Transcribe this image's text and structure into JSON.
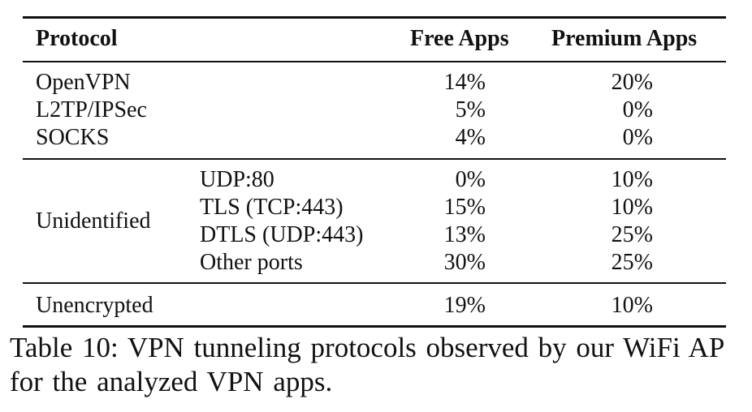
{
  "table": {
    "headers": {
      "protocol": "Protocol",
      "free": "Free Apps",
      "premium": "Premium Apps"
    },
    "known_protocols": [
      {
        "name": "OpenVPN",
        "free": "14%",
        "premium": "20%"
      },
      {
        "name": "L2TP/IPSec",
        "free": "5%",
        "premium": "0%"
      },
      {
        "name": "SOCKS",
        "free": "4%",
        "premium": "0%"
      }
    ],
    "unidentified": {
      "label": "Unidentified",
      "rows": [
        {
          "port": "UDP:80",
          "free": "0%",
          "premium": "10%"
        },
        {
          "port": "TLS (TCP:443)",
          "free": "15%",
          "premium": "10%"
        },
        {
          "port": "DTLS (UDP:443)",
          "free": "13%",
          "premium": "25%"
        },
        {
          "port": "Other ports",
          "free": "30%",
          "premium": "25%"
        }
      ]
    },
    "unencrypted": {
      "name": "Unencrypted",
      "free": "19%",
      "premium": "10%"
    }
  },
  "caption": "Table 10: VPN tunneling protocols observed by our WiFi AP for the analyzed VPN apps."
}
